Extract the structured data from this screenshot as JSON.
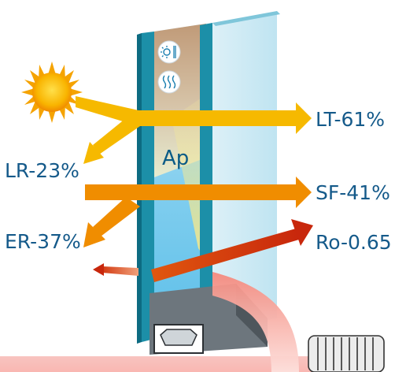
{
  "labels": {
    "lt": "LT-61%",
    "lr": "LR-23%",
    "sf": "SF-41%",
    "er": "ER-37%",
    "ro": "Ro-0.65",
    "ap": "Ap"
  },
  "icons": [
    "sun-icon",
    "sun-coating-icon",
    "heat-waves-icon",
    "radiator-icon",
    "spacer-frame-icon"
  ],
  "colors": {
    "light_arrow": "#f6b900",
    "solar_arrow": "#f08d00",
    "heat_arrow": "#d23a0c",
    "glass_edge": "#1c8fa8",
    "label_text": "#155a8a"
  }
}
